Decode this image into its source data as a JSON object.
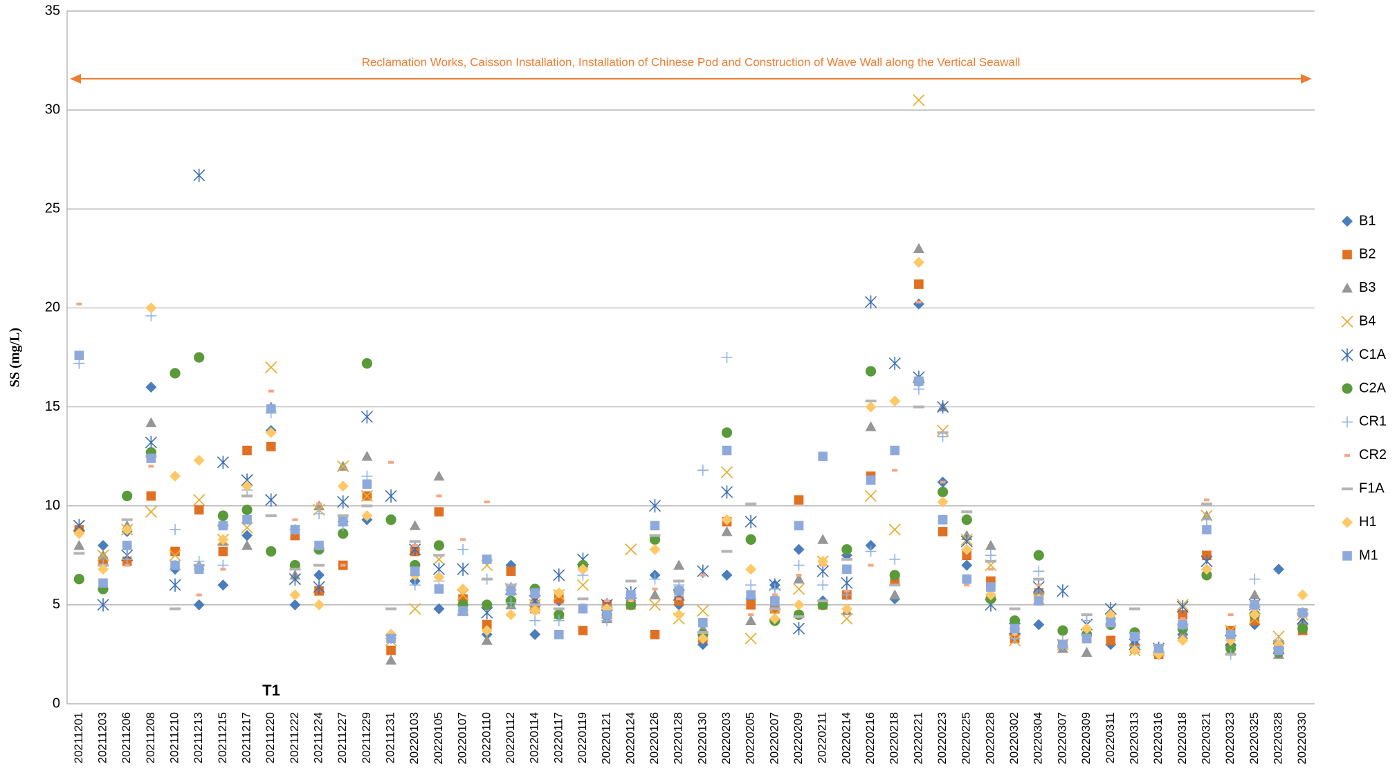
{
  "chart_data": {
    "type": "scatter",
    "y_label": "SS (mg/L)",
    "annotations": [
      "Reclamation Works, Caisson Installation, Installation of Chinese Pod and Construction of Wave Wall along the Vertical Seawall",
      "T1"
    ],
    "annotation_color": "#ed7d31",
    "ylim": [
      0,
      35
    ],
    "yticks": [
      0,
      5,
      10,
      15,
      20,
      25,
      30,
      35
    ],
    "grid": true,
    "legend": "right",
    "categories": [
      "20211201",
      "20211203",
      "20211206",
      "20211208",
      "20211210",
      "20211213",
      "20211215",
      "20211217",
      "20211220",
      "20211222",
      "20211224",
      "20211227",
      "20211229",
      "20211231",
      "20220103",
      "20220105",
      "20220107",
      "20220110",
      "20220112",
      "20220114",
      "20220117",
      "20220119",
      "20220121",
      "20220124",
      "20220126",
      "20220128",
      "20220130",
      "20220203",
      "20220205",
      "20220207",
      "20220209",
      "20220211",
      "20220214",
      "20220216",
      "20220218",
      "20220221",
      "20220223",
      "20220225",
      "20220228",
      "20220302",
      "20220304",
      "20220307",
      "20220309",
      "20220311",
      "20220313",
      "20220316",
      "20220318",
      "20220321",
      "20220323",
      "20220325",
      "20220328",
      "20220330"
    ],
    "series": [
      {
        "name": "B1",
        "color": "#4a7ebb",
        "marker": "diamond",
        "values": [
          8.7,
          8.0,
          8.7,
          16.0,
          6.8,
          5.0,
          6.0,
          8.5,
          13.8,
          5.0,
          6.5,
          9.2,
          9.3,
          3.5,
          6.2,
          4.8,
          5.0,
          3.5,
          7.0,
          3.5,
          5.2,
          6.8,
          4.7,
          5.5,
          6.5,
          5.0,
          3.0,
          6.5,
          5.3,
          6.0,
          7.8,
          5.2,
          7.5,
          8.0,
          5.3,
          20.2,
          11.2,
          7.0,
          5.5,
          3.5,
          4.0,
          3.0,
          3.5,
          3.0,
          3.0,
          2.5,
          3.5,
          6.8,
          3.0,
          4.0,
          6.8,
          4.0
        ]
      },
      {
        "name": "B2",
        "color": "#e07022",
        "marker": "square",
        "values": [
          8.8,
          7.2,
          7.2,
          10.5,
          7.7,
          9.8,
          7.7,
          12.8,
          13.0,
          8.5,
          5.7,
          7.0,
          10.5,
          2.7,
          7.7,
          9.7,
          5.3,
          4.0,
          6.7,
          4.8,
          5.3,
          3.7,
          5.0,
          5.0,
          3.5,
          5.2,
          3.3,
          9.2,
          5.0,
          4.8,
          10.3,
          5.0,
          5.5,
          11.5,
          6.2,
          21.2,
          8.7,
          7.5,
          6.2,
          3.3,
          5.6,
          3.0,
          3.3,
          3.2,
          2.8,
          2.5,
          4.5,
          7.5,
          3.7,
          4.2,
          3.0,
          3.7
        ]
      },
      {
        "name": "B3",
        "color": "#969696",
        "marker": "triangle",
        "values": [
          8.0,
          7.5,
          9.0,
          14.2,
          7.0,
          7.0,
          8.2,
          8.0,
          15.0,
          6.5,
          10.0,
          12.0,
          12.5,
          2.2,
          9.0,
          11.5,
          4.9,
          3.2,
          5.0,
          5.3,
          4.5,
          7.0,
          4.3,
          5.4,
          5.5,
          7.0,
          3.8,
          8.7,
          4.2,
          5.0,
          6.3,
          8.3,
          4.7,
          14.0,
          5.5,
          23.0,
          15.0,
          8.5,
          8.0,
          4.0,
          5.7,
          2.8,
          2.6,
          4.5,
          3.6,
          2.8,
          3.5,
          9.5,
          2.7,
          5.5,
          2.5,
          4.2
        ]
      },
      {
        "name": "B4",
        "color": "#e6b035",
        "marker": "x",
        "values": [
          9.0,
          7.5,
          8.8,
          9.7,
          7.5,
          10.3,
          8.3,
          8.9,
          17.0,
          6.3,
          9.8,
          12.0,
          10.5,
          3.2,
          4.8,
          7.3,
          5.5,
          7.0,
          5.5,
          5.0,
          5.5,
          6.0,
          4.6,
          7.8,
          5.0,
          4.3,
          4.7,
          11.7,
          3.3,
          4.5,
          5.8,
          7.2,
          4.3,
          10.5,
          8.8,
          30.5,
          13.8,
          8.3,
          7.0,
          3.2,
          5.3,
          3.0,
          4.0,
          4.8,
          2.7,
          2.7,
          5.0,
          9.5,
          3.7,
          4.3,
          3.4,
          4.5
        ]
      },
      {
        "name": "C1A",
        "color": "#3e6fb5",
        "marker": "asterisk",
        "values": [
          9.0,
          5.0,
          7.5,
          13.2,
          6.0,
          26.7,
          12.2,
          11.3,
          10.3,
          6.3,
          5.9,
          10.2,
          14.5,
          10.5,
          7.8,
          6.8,
          6.8,
          4.6,
          5.8,
          5.2,
          6.5,
          7.3,
          5.0,
          5.6,
          10.0,
          5.5,
          6.7,
          10.7,
          9.2,
          6.0,
          3.8,
          6.7,
          6.1,
          20.3,
          17.2,
          16.5,
          15.0,
          8.2,
          5.0,
          3.8,
          5.9,
          5.7,
          4.0,
          4.8,
          3.0,
          2.8,
          4.9,
          7.2,
          3.2,
          5.0,
          2.8,
          4.3
        ]
      },
      {
        "name": "C2A",
        "color": "#5a9a3a",
        "marker": "circle",
        "values": [
          6.3,
          5.8,
          10.5,
          12.7,
          16.7,
          17.5,
          9.5,
          9.8,
          7.7,
          7.0,
          7.8,
          8.6,
          17.2,
          9.3,
          7.0,
          8.0,
          5.0,
          5.0,
          5.2,
          5.8,
          4.5,
          7.0,
          4.5,
          5.0,
          8.3,
          5.7,
          3.5,
          13.7,
          8.3,
          4.2,
          4.5,
          5.0,
          7.8,
          16.8,
          6.5,
          16.3,
          10.7,
          9.3,
          5.3,
          4.2,
          7.5,
          3.7,
          3.5,
          4.0,
          3.6,
          2.6,
          3.8,
          6.5,
          2.8,
          4.5,
          2.6,
          3.8
        ]
      },
      {
        "name": "CR1",
        "color": "#8fb4e3",
        "marker": "plus",
        "values": [
          17.2,
          7.0,
          7.3,
          19.6,
          8.8,
          7.2,
          7.0,
          10.8,
          14.7,
          8.8,
          9.6,
          9.0,
          11.5,
          3.3,
          6.0,
          6.2,
          7.8,
          6.3,
          5.1,
          4.2,
          4.2,
          6.5,
          4.2,
          5.5,
          6.3,
          6.0,
          11.8,
          17.5,
          6.0,
          5.8,
          7.0,
          6.0,
          5.5,
          7.7,
          7.3,
          15.9,
          13.5,
          7.8,
          7.5,
          3.3,
          6.7,
          3.2,
          4.2,
          4.5,
          2.9,
          2.5,
          4.0,
          9.3,
          2.5,
          6.3,
          3.2,
          4.6
        ]
      },
      {
        "name": "CR2",
        "color": "#f4a582",
        "marker": "dash",
        "values": [
          20.2,
          6.8,
          7.0,
          12.0,
          7.0,
          5.5,
          6.8,
          9.3,
          15.8,
          9.3,
          10.1,
          7.0,
          10.0,
          12.2,
          8.0,
          10.5,
          8.3,
          10.2,
          5.8,
          5.4,
          5.7,
          5.0,
          5.2,
          5.2,
          5.8,
          5.3,
          6.5,
          9.3,
          4.5,
          5.5,
          6.5,
          7.0,
          5.7,
          7.0,
          11.8,
          20.3,
          11.2,
          6.0,
          6.8,
          3.5,
          6.0,
          3.1,
          3.8,
          4.2,
          3.3,
          2.4,
          4.3,
          10.3,
          4.5,
          4.7,
          3.0,
          4.4
        ]
      },
      {
        "name": "F1A",
        "color": "#b4b4b4",
        "marker": "wide-dash",
        "values": [
          7.6,
          7.0,
          9.3,
          12.5,
          4.8,
          7.0,
          9.0,
          10.5,
          9.5,
          6.8,
          7.0,
          9.5,
          10.0,
          4.8,
          8.2,
          7.5,
          4.5,
          6.3,
          6.0,
          5.0,
          4.8,
          5.3,
          4.9,
          6.2,
          8.5,
          6.2,
          3.6,
          7.7,
          10.1,
          4.8,
          4.4,
          5.2,
          7.3,
          15.3,
          6.0,
          15.0,
          13.7,
          9.7,
          7.2,
          4.8,
          6.3,
          2.9,
          4.5,
          4.0,
          4.8,
          2.6,
          4.0,
          10.1,
          2.5,
          4.9,
          2.8,
          4.5
        ]
      },
      {
        "name": "H1",
        "color": "#ffc866",
        "marker": "diamond",
        "values": [
          8.6,
          6.8,
          8.8,
          20.0,
          11.5,
          12.3,
          8.3,
          11.0,
          13.7,
          5.5,
          5.0,
          11.0,
          9.5,
          3.5,
          6.5,
          6.4,
          5.8,
          3.7,
          4.5,
          4.7,
          5.6,
          6.8,
          4.8,
          5.4,
          7.8,
          4.5,
          3.3,
          9.3,
          6.8,
          4.3,
          5.0,
          7.2,
          4.8,
          15.0,
          15.3,
          22.3,
          10.2,
          7.8,
          5.5,
          3.7,
          5.3,
          3.0,
          3.8,
          4.5,
          2.7,
          2.5,
          3.2,
          6.8,
          3.2,
          4.5,
          3.0,
          5.5
        ]
      },
      {
        "name": "M1",
        "color": "#8ea9db",
        "marker": "square",
        "values": [
          17.6,
          6.1,
          8.0,
          12.4,
          7.0,
          6.8,
          9.0,
          9.3,
          14.9,
          8.8,
          8.0,
          9.2,
          11.1,
          3.3,
          6.7,
          5.8,
          4.7,
          7.3,
          5.7,
          5.6,
          3.5,
          4.8,
          4.5,
          5.5,
          9.0,
          5.7,
          4.1,
          12.8,
          5.5,
          5.2,
          9.0,
          12.5,
          6.8,
          11.3,
          12.8,
          16.3,
          9.3,
          6.3,
          5.9,
          3.8,
          5.2,
          3.0,
          3.3,
          4.1,
          3.4,
          2.8,
          4.0,
          8.8,
          3.5,
          5.0,
          2.7,
          4.6
        ]
      }
    ]
  }
}
